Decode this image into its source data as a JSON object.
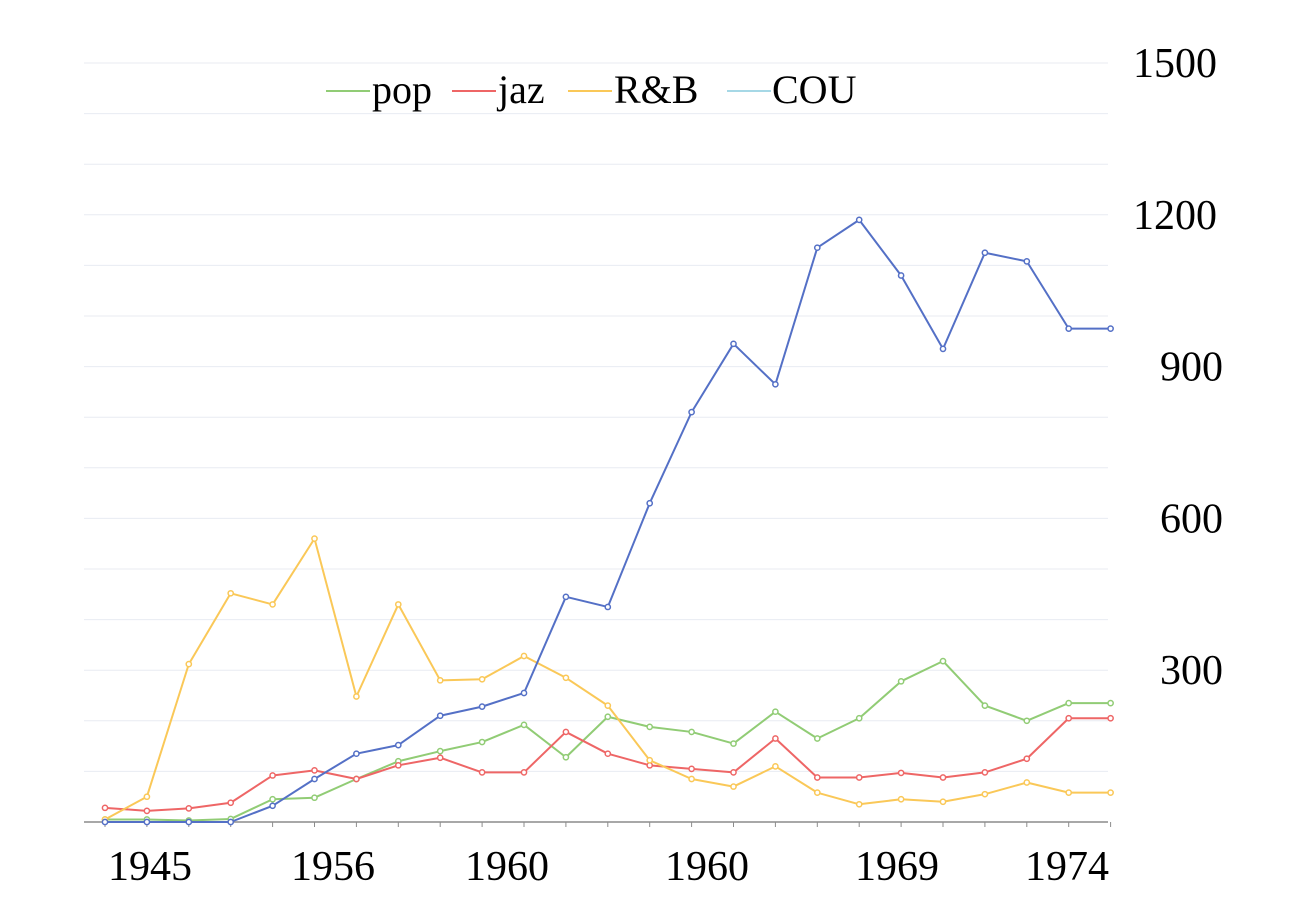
{
  "chart_data": {
    "type": "line",
    "title": "",
    "xlabel": "",
    "ylabel": "",
    "x_tick_labels": [
      "1945",
      "1956",
      "1960",
      "1960",
      "1969",
      "1974"
    ],
    "y_ticks": [
      300,
      600,
      900,
      1200,
      1500
    ],
    "ylim": [
      0,
      1500
    ],
    "grid": true,
    "legend_position": "top",
    "point_count": 25,
    "series": [
      {
        "name": "pop",
        "color": "#91cc75",
        "values": [
          5,
          5,
          3,
          6,
          45,
          48,
          85,
          120,
          140,
          158,
          192,
          128,
          208,
          188,
          178,
          155,
          218,
          165,
          205,
          278,
          318,
          230,
          200,
          235,
          235
        ]
      },
      {
        "name": "jaz",
        "color": "#ee6666",
        "values": [
          28,
          22,
          27,
          38,
          92,
          102,
          85,
          112,
          127,
          98,
          98,
          178,
          135,
          112,
          105,
          98,
          165,
          88,
          88,
          97,
          88,
          98,
          125,
          205,
          205
        ]
      },
      {
        "name": "R&B",
        "color": "#fac858",
        "values": [
          5,
          50,
          312,
          452,
          430,
          560,
          248,
          430,
          280,
          282,
          328,
          285,
          230,
          122,
          85,
          70,
          110,
          58,
          35,
          45,
          40,
          55,
          78,
          58,
          58
        ]
      },
      {
        "name": "COU",
        "color": "#5470c6",
        "values": [
          0,
          0,
          0,
          0,
          32,
          85,
          135,
          152,
          210,
          228,
          255,
          445,
          425,
          630,
          810,
          945,
          865,
          1135,
          1190,
          1080,
          935,
          1125,
          1108,
          975,
          975
        ]
      }
    ]
  }
}
